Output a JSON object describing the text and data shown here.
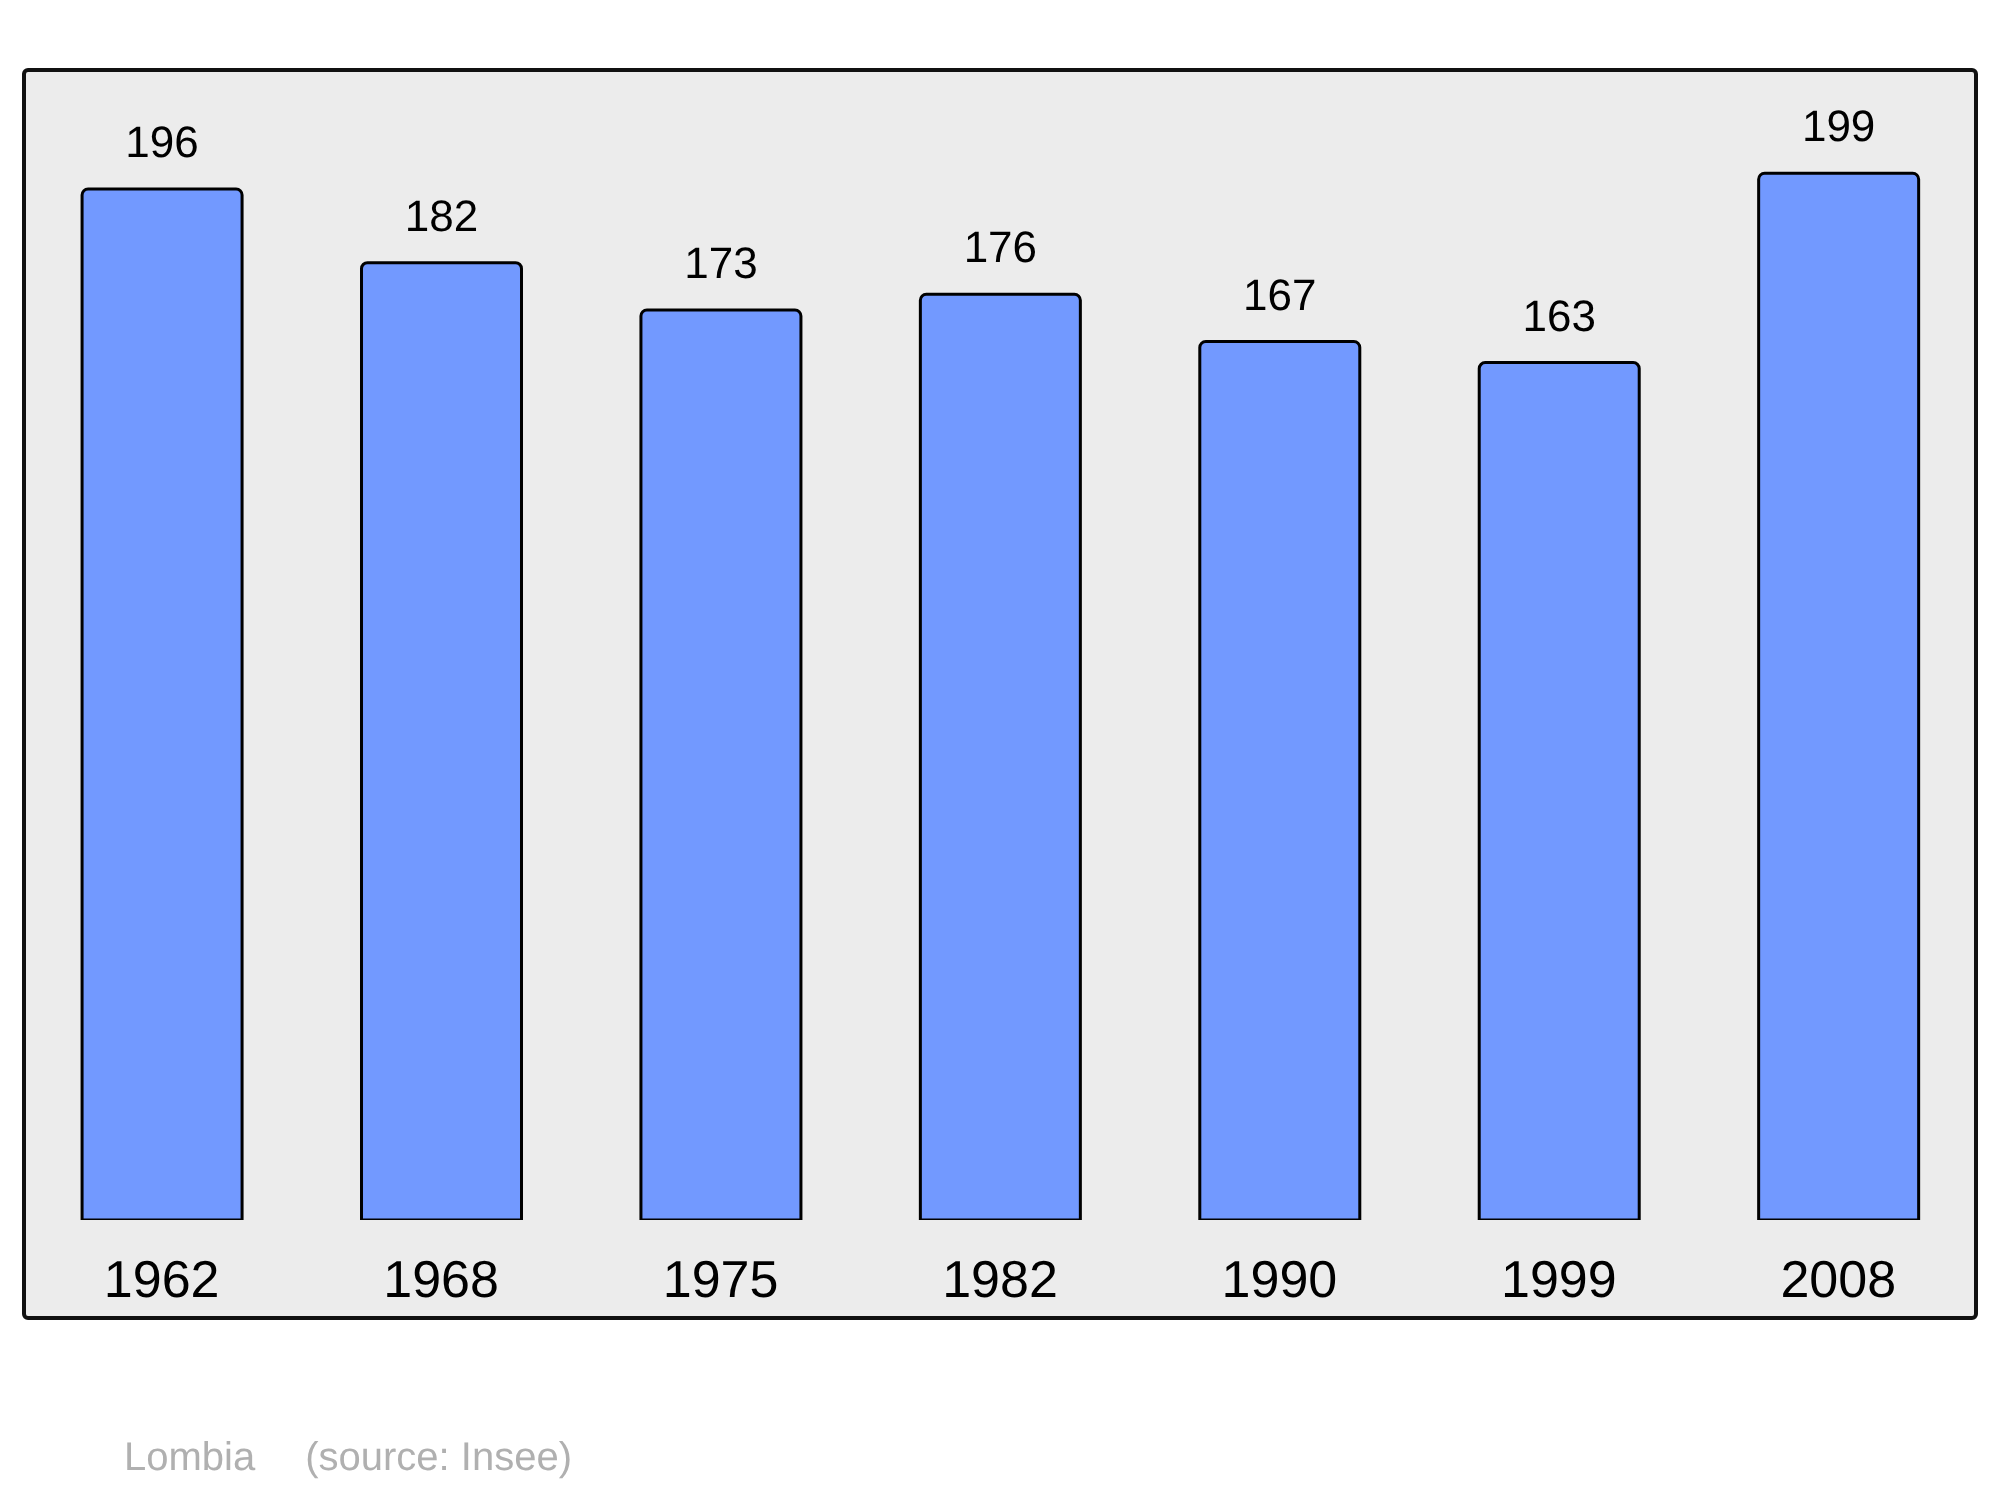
{
  "chart_data": {
    "type": "bar",
    "categories": [
      "1962",
      "1968",
      "1975",
      "1982",
      "1990",
      "1999",
      "2008"
    ],
    "values": [
      196,
      182,
      173,
      176,
      167,
      163,
      199
    ],
    "color": "#7299ff",
    "ylim": [
      0,
      219
    ],
    "tick_labels": "x",
    "data_labels": true,
    "grid": false,
    "legend": false,
    "annotations": [
      "Lombia",
      "(source: Insee)"
    ]
  }
}
